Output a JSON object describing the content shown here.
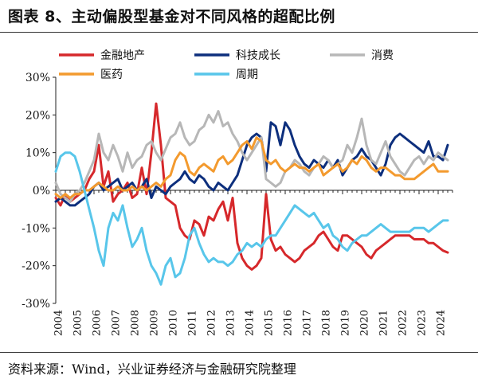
{
  "header": {
    "title": "图表 8、主动偏股型基金对不同风格的超配比例"
  },
  "footer": {
    "source": "资料来源：Wind，兴业证券经济与金融研究院整理"
  },
  "colors": {
    "金融地产": "#d6282b",
    "科技成长": "#0d2f7d",
    "消费": "#b7b7b7",
    "医药": "#f39a2e",
    "周期": "#58c6ea"
  },
  "chart_data": {
    "type": "line",
    "title": "主动偏股型基金对不同风格的超配比例",
    "xlabel": "",
    "ylabel": "",
    "ylim": [
      -30,
      30
    ],
    "yticks": [
      -30,
      -20,
      -10,
      0,
      10,
      20,
      30
    ],
    "ytick_labels": [
      "-30%",
      "-20%",
      "-10%",
      "0%",
      "10%",
      "20%",
      "30%"
    ],
    "xlim": [
      2004,
      2024.75
    ],
    "xticks": [
      2004,
      2005,
      2006,
      2007,
      2008,
      2009,
      2010,
      2011,
      2012,
      2013,
      2014,
      2015,
      2016,
      2017,
      2018,
      2019,
      2020,
      2021,
      2022,
      2023,
      2024
    ],
    "legend_position": "top",
    "series": [
      {
        "name": "金融地产",
        "x": [
          2004,
          2004.25,
          2004.5,
          2004.75,
          2005,
          2005.25,
          2005.5,
          2005.75,
          2006,
          2006.25,
          2006.5,
          2006.75,
          2007,
          2007.25,
          2007.5,
          2007.75,
          2008,
          2008.25,
          2008.5,
          2008.75,
          2009,
          2009.25,
          2009.5,
          2009.75,
          2010,
          2010.25,
          2010.5,
          2010.75,
          2011,
          2011.25,
          2011.5,
          2011.75,
          2012,
          2012.25,
          2012.5,
          2012.75,
          2013,
          2013.25,
          2013.5,
          2013.75,
          2014,
          2014.25,
          2014.5,
          2014.75,
          2015,
          2015.25,
          2015.5,
          2015.75,
          2016,
          2016.25,
          2016.5,
          2016.75,
          2017,
          2017.25,
          2017.5,
          2017.75,
          2018,
          2018.25,
          2018.5,
          2018.75,
          2019,
          2019.25,
          2019.5,
          2019.75,
          2020,
          2020.25,
          2020.5,
          2020.75,
          2021,
          2021.25,
          2021.5,
          2021.75,
          2022,
          2022.25,
          2022.5,
          2022.75,
          2023,
          2023.25,
          2023.5,
          2023.75,
          2024,
          2024.25,
          2024.5
        ],
        "values": [
          -2,
          -4,
          -1,
          -3,
          -2,
          -1,
          0,
          3,
          5,
          12,
          1,
          5,
          -3,
          -1,
          0,
          2,
          -2,
          -1,
          6,
          -1,
          10,
          23,
          12,
          -2,
          -3,
          -4,
          -10,
          -12,
          -13,
          -8,
          -9,
          -12,
          -7,
          -8,
          -5,
          -3,
          -8,
          -2,
          -14,
          -18,
          -20,
          -21,
          -20,
          -18,
          -1,
          -13,
          -16,
          -15,
          -17,
          -18,
          -19,
          -18,
          -16,
          -15,
          -14,
          -12,
          -11,
          -13,
          -15,
          -16,
          -12,
          -12,
          -13,
          -14,
          -15,
          -17,
          -18,
          -16,
          -15,
          -14,
          -13,
          -12,
          -12,
          -12,
          -12,
          -13,
          -13,
          -13,
          -14,
          -14,
          -15,
          -16,
          -16.5
        ]
      },
      {
        "name": "科技成长",
        "x": [
          2004,
          2004.25,
          2004.5,
          2004.75,
          2005,
          2005.25,
          2005.5,
          2005.75,
          2006,
          2006.25,
          2006.5,
          2006.75,
          2007,
          2007.25,
          2007.5,
          2007.75,
          2008,
          2008.25,
          2008.5,
          2008.75,
          2009,
          2009.25,
          2009.5,
          2009.75,
          2010,
          2010.25,
          2010.5,
          2010.75,
          2011,
          2011.25,
          2011.5,
          2011.75,
          2012,
          2012.25,
          2012.5,
          2012.75,
          2013,
          2013.25,
          2013.5,
          2013.75,
          2014,
          2014.25,
          2014.5,
          2014.75,
          2015,
          2015.25,
          2015.5,
          2015.75,
          2016,
          2016.25,
          2016.5,
          2016.75,
          2017,
          2017.25,
          2017.5,
          2017.75,
          2018,
          2018.25,
          2018.5,
          2018.75,
          2019,
          2019.25,
          2019.5,
          2019.75,
          2020,
          2020.25,
          2020.5,
          2020.75,
          2021,
          2021.25,
          2021.5,
          2021.75,
          2022,
          2022.25,
          2022.5,
          2022.75,
          2023,
          2023.25,
          2023.5,
          2023.75,
          2024,
          2024.25,
          2024.5
        ],
        "values": [
          -3,
          -2,
          -3,
          -4,
          -4,
          -3,
          -2,
          -1,
          1,
          2,
          0,
          1,
          2,
          3,
          0,
          1,
          2,
          0,
          1,
          3,
          -2,
          1,
          0,
          -1,
          1,
          2,
          3,
          5,
          3,
          2,
          4,
          3,
          1,
          0,
          2,
          1,
          0,
          2,
          4,
          8,
          12,
          14,
          15,
          14,
          5,
          18,
          17,
          12,
          18,
          16,
          12,
          9,
          7,
          6,
          8,
          7,
          6,
          8,
          6,
          8,
          4,
          6,
          8,
          9,
          11,
          9,
          8,
          6,
          4,
          7,
          12,
          14,
          15,
          14,
          13,
          12,
          11,
          10,
          13,
          9,
          9,
          8,
          12
        ]
      },
      {
        "name": "消费",
        "x": [
          2004,
          2004.25,
          2004.5,
          2004.75,
          2005,
          2005.25,
          2005.5,
          2005.75,
          2006,
          2006.25,
          2006.5,
          2006.75,
          2007,
          2007.25,
          2007.5,
          2007.75,
          2008,
          2008.25,
          2008.5,
          2008.75,
          2009,
          2009.25,
          2009.5,
          2009.75,
          2010,
          2010.25,
          2010.5,
          2010.75,
          2011,
          2011.25,
          2011.5,
          2011.75,
          2012,
          2012.25,
          2012.5,
          2012.75,
          2013,
          2013.25,
          2013.5,
          2013.75,
          2014,
          2014.25,
          2014.5,
          2014.75,
          2015,
          2015.25,
          2015.5,
          2015.75,
          2016,
          2016.25,
          2016.5,
          2016.75,
          2017,
          2017.25,
          2017.5,
          2017.75,
          2018,
          2018.25,
          2018.5,
          2018.75,
          2019,
          2019.25,
          2019.5,
          2019.75,
          2020,
          2020.25,
          2020.5,
          2020.75,
          2021,
          2021.25,
          2021.5,
          2021.75,
          2022,
          2022.25,
          2022.5,
          2022.75,
          2023,
          2023.25,
          2023.5,
          2023.75,
          2024,
          2024.25,
          2024.5
        ],
        "values": [
          2,
          -1,
          -2,
          -3,
          -1,
          0,
          2,
          5,
          8,
          15,
          10,
          8,
          12,
          9,
          5,
          10,
          6,
          8,
          9,
          12,
          13,
          10,
          8,
          11,
          14,
          15,
          18,
          14,
          12,
          13,
          16,
          17,
          20,
          18,
          21,
          17,
          18,
          15,
          13,
          10,
          8,
          10,
          12,
          14,
          3,
          2,
          1,
          2,
          5,
          6,
          8,
          7,
          5,
          4,
          6,
          7,
          9,
          8,
          6,
          7,
          8,
          12,
          10,
          14,
          19,
          12,
          8,
          7,
          10,
          13,
          9,
          7,
          5,
          4,
          6,
          8,
          9,
          7,
          9,
          8,
          10,
          9,
          8
        ]
      },
      {
        "name": "医药",
        "x": [
          2004,
          2004.25,
          2004.5,
          2004.75,
          2005,
          2005.25,
          2005.5,
          2005.75,
          2006,
          2006.25,
          2006.5,
          2006.75,
          2007,
          2007.25,
          2007.5,
          2007.75,
          2008,
          2008.25,
          2008.5,
          2008.75,
          2009,
          2009.25,
          2009.5,
          2009.75,
          2010,
          2010.25,
          2010.5,
          2010.75,
          2011,
          2011.25,
          2011.5,
          2011.75,
          2012,
          2012.25,
          2012.5,
          2012.75,
          2013,
          2013.25,
          2013.5,
          2013.75,
          2014,
          2014.25,
          2014.5,
          2014.75,
          2015,
          2015.25,
          2015.5,
          2015.75,
          2016,
          2016.25,
          2016.5,
          2016.75,
          2017,
          2017.25,
          2017.5,
          2017.75,
          2018,
          2018.25,
          2018.5,
          2018.75,
          2019,
          2019.25,
          2019.5,
          2019.75,
          2020,
          2020.25,
          2020.5,
          2020.75,
          2021,
          2021.25,
          2021.5,
          2021.75,
          2022,
          2022.25,
          2022.5,
          2022.75,
          2023,
          2023.25,
          2023.5,
          2023.75,
          2024,
          2024.25,
          2024.5
        ],
        "values": [
          -1,
          -2,
          -1,
          -2,
          -1,
          -1,
          0,
          0,
          1,
          2,
          1,
          0,
          0,
          1,
          0,
          0,
          1,
          0,
          1,
          0,
          1,
          2,
          1,
          3,
          4,
          8,
          10,
          9,
          5,
          4,
          6,
          7,
          6,
          5,
          8,
          9,
          7,
          8,
          10,
          12,
          13,
          11,
          14,
          13,
          8,
          7,
          8,
          6,
          5,
          6,
          7,
          6,
          6,
          5,
          6,
          7,
          4,
          5,
          6,
          7,
          5,
          6,
          8,
          7,
          9,
          8,
          6,
          5,
          6,
          6,
          5,
          4,
          4,
          3,
          3,
          3,
          4,
          5,
          6,
          7,
          5,
          5,
          5
        ]
      },
      {
        "name": "周期",
        "x": [
          2004,
          2004.25,
          2004.5,
          2004.75,
          2005,
          2005.25,
          2005.5,
          2005.75,
          2006,
          2006.25,
          2006.5,
          2006.75,
          2007,
          2007.25,
          2007.5,
          2007.75,
          2008,
          2008.25,
          2008.5,
          2008.75,
          2009,
          2009.25,
          2009.5,
          2009.75,
          2010,
          2010.25,
          2010.5,
          2010.75,
          2011,
          2011.25,
          2011.5,
          2011.75,
          2012,
          2012.25,
          2012.5,
          2012.75,
          2013,
          2013.25,
          2013.5,
          2013.75,
          2014,
          2014.25,
          2014.5,
          2014.75,
          2015,
          2015.25,
          2015.5,
          2015.75,
          2016,
          2016.25,
          2016.5,
          2016.75,
          2017,
          2017.25,
          2017.5,
          2017.75,
          2018,
          2018.25,
          2018.5,
          2018.75,
          2019,
          2019.25,
          2019.5,
          2019.75,
          2020,
          2020.25,
          2020.5,
          2020.75,
          2021,
          2021.25,
          2021.5,
          2021.75,
          2022,
          2022.25,
          2022.5,
          2022.75,
          2023,
          2023.25,
          2023.5,
          2023.75,
          2024,
          2024.25,
          2024.5
        ],
        "values": [
          5,
          9,
          10,
          10,
          9,
          5,
          0,
          -5,
          -10,
          -16,
          -20,
          -10,
          -6,
          -8,
          -4,
          -10,
          -15,
          -13,
          -10,
          -16,
          -20,
          -22,
          -25,
          -20,
          -18,
          -23,
          -22,
          -18,
          -12,
          -10,
          -14,
          -17,
          -19,
          -18,
          -19,
          -19,
          -20,
          -19,
          -17,
          -16,
          -14,
          -15,
          -14,
          -15,
          -13,
          -12,
          -12,
          -10,
          -8,
          -6,
          -4,
          -5,
          -6,
          -7,
          -6,
          -8,
          -10,
          -9,
          -12,
          -13,
          -15,
          -16,
          -14,
          -13,
          -12,
          -12,
          -11,
          -10,
          -9,
          -10,
          -11,
          -11,
          -11,
          -11,
          -11,
          -10,
          -10,
          -10,
          -11,
          -10,
          -9,
          -8,
          -8
        ]
      }
    ]
  }
}
